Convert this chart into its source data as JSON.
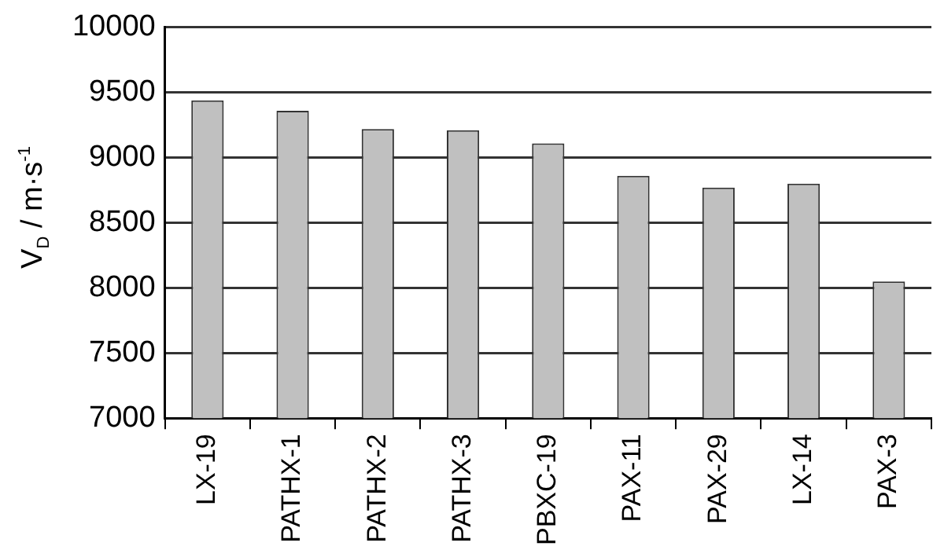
{
  "chart_data": {
    "type": "bar",
    "ylabel": "V$_{D}$ / m·s$^{-1}$",
    "categories": [
      "LX-19",
      "PATHX-1",
      "PATHX-2",
      "PATHX-3",
      "PBXC-19",
      "PAX-11",
      "PAX-29",
      "LX-14",
      "PAX-3"
    ],
    "values": [
      9440,
      9360,
      9220,
      9210,
      9110,
      8860,
      8770,
      8800,
      8050
    ],
    "color": "#c0c0c0",
    "ylim": [
      7000,
      10000
    ],
    "yticks": [
      7000,
      7500,
      8000,
      8500,
      9000,
      9500,
      10000
    ],
    "grid": "y",
    "legend": false
  }
}
